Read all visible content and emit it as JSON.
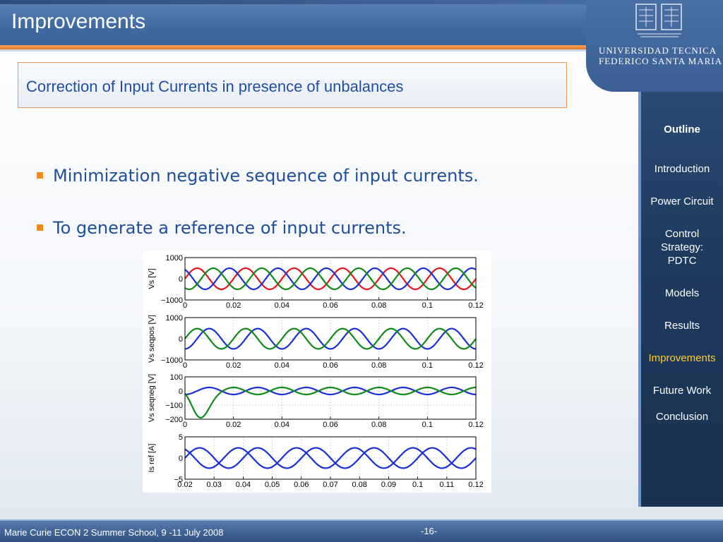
{
  "slide": {
    "title": "Improvements",
    "subtitle": "Correction of Input Currents in presence of unbalances",
    "bullets": [
      "Minimization negative sequence of input currents.",
      "To generate a reference of input currents."
    ]
  },
  "logo": {
    "line1": "UNIVERSIDAD TECNICA",
    "line2": "FEDERICO SANTA MARIA"
  },
  "sidebar": {
    "items": [
      "Outline",
      "Introduction",
      "Power Circuit",
      "Control Strategy: PDTC",
      "Models",
      "Results",
      "Improvements",
      "Future Work",
      "Conclusion"
    ],
    "active": "Improvements"
  },
  "footer": {
    "text": "Marie Curie ECON 2 Summer School, 9 -11 July 2008",
    "page": "-16-"
  },
  "colors": {
    "accent": "#f08a1c",
    "active_nav": "#ffcc33",
    "series_red": "#e8141e",
    "series_blue": "#1a2fd8",
    "series_green": "#108a18"
  },
  "chart_data": [
    {
      "type": "line",
      "ylabel": "V_s [V]",
      "xlim": [
        0,
        0.12
      ],
      "ylim": [
        -1000,
        1000
      ],
      "xticks": [
        "0",
        "0.02",
        "0.04",
        "0.06",
        "0.08",
        "0.1",
        "0.12"
      ],
      "yticks": [
        "1000",
        "0",
        "−1000"
      ],
      "grid": "dotted",
      "series": [
        {
          "color": "red",
          "amplitude": 500,
          "frequency_hz": 50,
          "phase_deg": 0
        },
        {
          "color": "blue",
          "amplitude": 500,
          "frequency_hz": 50,
          "phase_deg": 120
        },
        {
          "color": "green",
          "amplitude": 500,
          "frequency_hz": 50,
          "phase_deg": -120
        }
      ]
    },
    {
      "type": "line",
      "ylabel": "V_s seqpos [V]",
      "xlim": [
        0,
        0.12
      ],
      "ylim": [
        -1000,
        1000
      ],
      "xticks": [
        "0",
        "0.02",
        "0.04",
        "0.06",
        "0.08",
        "0.1",
        "0.12"
      ],
      "yticks": [
        "1000",
        "0",
        "−1000"
      ],
      "grid": "dotted",
      "series": [
        {
          "color": "blue",
          "amplitude": 480,
          "frequency_hz": 50,
          "phase_deg": -90
        },
        {
          "color": "green",
          "amplitude": 480,
          "frequency_hz": 50,
          "phase_deg": 0
        }
      ]
    },
    {
      "type": "line",
      "ylabel": "V_s seqneg [V]",
      "xlim": [
        0,
        0.12
      ],
      "ylim": [
        -200,
        100
      ],
      "xticks": [
        "0",
        "0.02",
        "0.04",
        "0.06",
        "0.08",
        "0.1",
        "0.12"
      ],
      "yticks": [
        "100",
        "0",
        "−100",
        "−200"
      ],
      "grid": "dotted",
      "series": [
        {
          "color": "blue",
          "amplitude": 25,
          "frequency_hz": 50,
          "phase_deg": -90
        },
        {
          "color": "green",
          "amplitude": 25,
          "frequency_hz": 50,
          "phase_deg": 90,
          "transient_min": -180
        }
      ]
    },
    {
      "type": "line",
      "ylabel": "I_s ref [A]",
      "xlim": [
        0.02,
        0.12
      ],
      "ylim": [
        -5,
        5
      ],
      "xticks": [
        "0.02",
        "0.03",
        "0.04",
        "0.05",
        "0.06",
        "0.07",
        "0.08",
        "0.09",
        "0.1",
        "0.11",
        "0.12"
      ],
      "yticks": [
        "5",
        "0",
        "−5"
      ],
      "grid": "dotted",
      "series": [
        {
          "color": "blue",
          "amplitude": 2.4,
          "frequency_hz": 50,
          "phase_deg": 0
        },
        {
          "color": "blue",
          "amplitude": 2.4,
          "frequency_hz": 50,
          "phase_deg": 120
        }
      ]
    }
  ]
}
